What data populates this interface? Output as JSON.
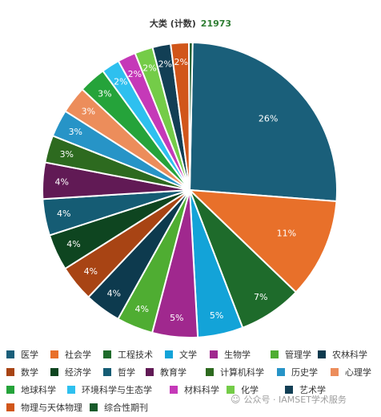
{
  "chart_data": {
    "type": "pie",
    "title": "大类 (计数)",
    "total": "21973",
    "slices": [
      {
        "label": "医学",
        "value": 26,
        "color": "#1a5f7a"
      },
      {
        "label": "社会学",
        "value": 11,
        "color": "#e8702a"
      },
      {
        "label": "工程技术",
        "value": 7,
        "color": "#1e6b2b"
      },
      {
        "label": "文学",
        "value": 5,
        "color": "#13a3d8"
      },
      {
        "label": "生物学",
        "value": 5,
        "color": "#a0288e"
      },
      {
        "label": "管理学",
        "value": 4,
        "color": "#4fad32"
      },
      {
        "label": "农林科学",
        "value": 4,
        "color": "#0d3a4e"
      },
      {
        "label": "数学",
        "value": 4,
        "color": "#a84414"
      },
      {
        "label": "经济学",
        "value": 4,
        "color": "#0e4520"
      },
      {
        "label": "哲学",
        "value": 4,
        "color": "#155c74"
      },
      {
        "label": "教育学",
        "value": 4,
        "color": "#611a55"
      },
      {
        "label": "计算机科学",
        "value": 3,
        "color": "#2d6a1f"
      },
      {
        "label": "历史学",
        "value": 3,
        "color": "#2794c7"
      },
      {
        "label": "心理学",
        "value": 3,
        "color": "#ec8d5b"
      },
      {
        "label": "地球科学",
        "value": 3,
        "color": "#25a33a"
      },
      {
        "label": "环境科学与生态学",
        "value": 2,
        "color": "#2ec0ef"
      },
      {
        "label": "材料科学",
        "value": 2,
        "color": "#c539b8"
      },
      {
        "label": "化学",
        "value": 2,
        "color": "#74cc48"
      },
      {
        "label": "艺术学",
        "value": 2,
        "color": "#123f55"
      },
      {
        "label": "物理与天体物理",
        "value": 2,
        "color": "#d1561a"
      },
      {
        "label": "综合性期刊",
        "value": 0.4,
        "color": "#175a2a"
      }
    ],
    "legend": "bottom"
  },
  "watermark": {
    "icon": "wechat-icon",
    "text": "公众号 · IAMSET学术服务"
  }
}
